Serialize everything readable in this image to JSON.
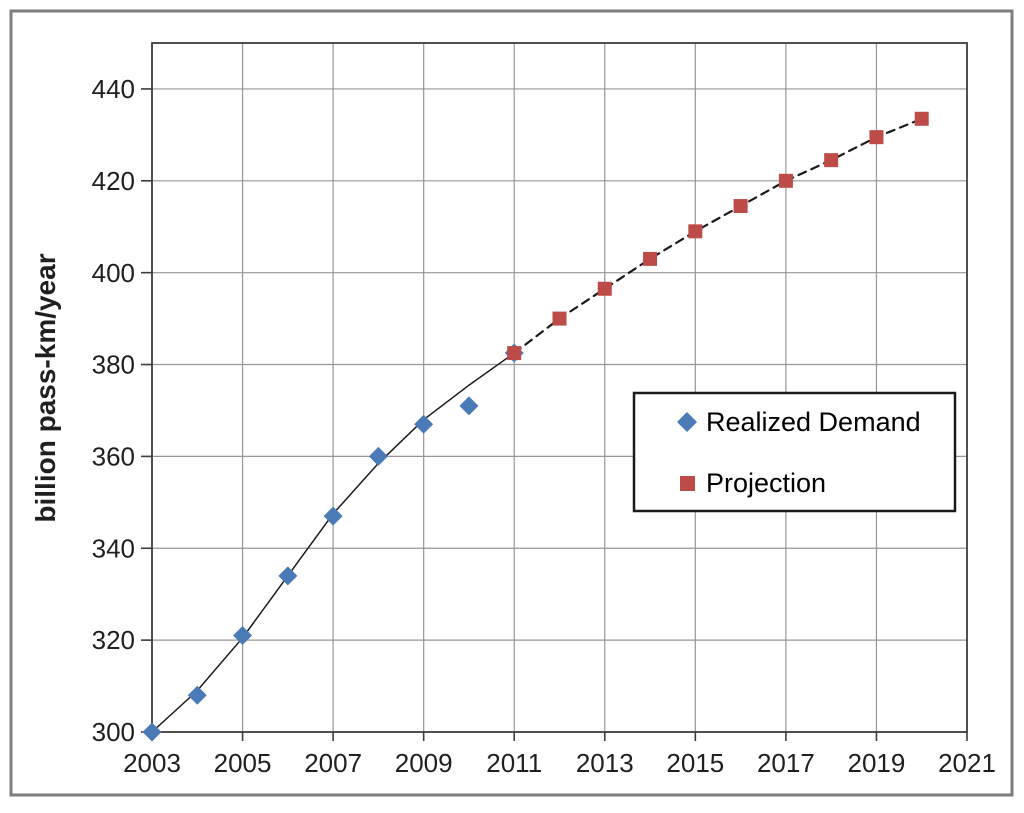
{
  "figure": {
    "background": "#ffffff",
    "frame_color": "#7e7e7e",
    "axis_color": "#3c3c3c",
    "gridline_color": "#969696",
    "text_color": "#1f1f1f"
  },
  "chart_data": {
    "type": "scatter",
    "title": "",
    "xlabel": "",
    "ylabel": "billion pass-km/year",
    "xlim": [
      2003,
      2021
    ],
    "ylim": [
      300,
      450
    ],
    "xticks": [
      2003,
      2005,
      2007,
      2009,
      2011,
      2013,
      2015,
      2017,
      2019,
      2021
    ],
    "yticks": [
      300,
      320,
      340,
      360,
      380,
      400,
      420,
      440
    ],
    "grid": true,
    "legend_position": "middle-right",
    "series": [
      {
        "name": "Realized Demand",
        "marker": "diamond",
        "marker_color": "#4a7bb7",
        "line_style": "solid",
        "line_color": "#1a1a1a",
        "x": [
          2003,
          2004,
          2005,
          2006,
          2007,
          2008,
          2009,
          2010,
          2011
        ],
        "y": [
          300,
          308,
          321,
          334,
          347,
          360,
          367,
          371,
          382.5
        ],
        "trend_y": [
          300,
          309,
          320.5,
          334,
          347.5,
          358.5,
          368,
          375.5,
          382.5
        ]
      },
      {
        "name": "Projection",
        "marker": "square",
        "marker_color": "#bd4b47",
        "line_style": "dashed",
        "line_color": "#1a1a1a",
        "x": [
          2011,
          2012,
          2013,
          2014,
          2015,
          2016,
          2017,
          2018,
          2019,
          2020
        ],
        "y": [
          382.5,
          390,
          396.5,
          403,
          409,
          414.5,
          420,
          424.5,
          429.5,
          433.5
        ]
      }
    ]
  }
}
